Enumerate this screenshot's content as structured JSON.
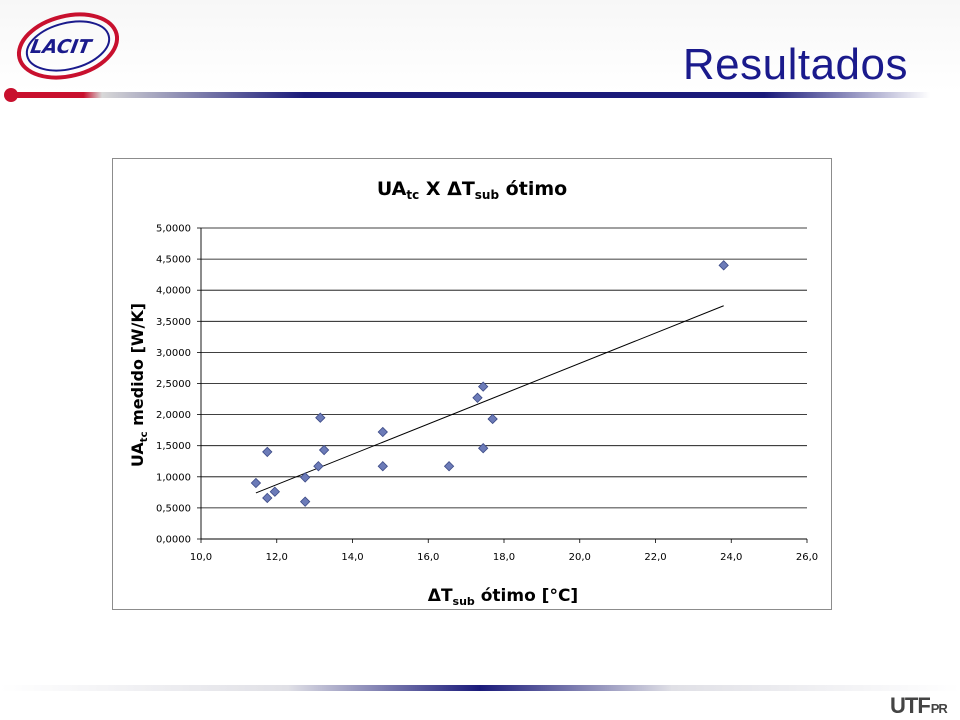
{
  "slide": {
    "title": "Resultados",
    "logo_text": "LACIT",
    "footer_logo_main": "UTF",
    "footer_logo_sub": "PR"
  },
  "colors": {
    "title": "#1a1a8c",
    "accent_red": "#c8102e",
    "rule_dark": "#1a1a7a",
    "marker": "#6c7bb8"
  },
  "chart_data": {
    "type": "scatter",
    "title_main": "UA",
    "title_sub1": "tc",
    "title_mid": " X ΔT",
    "title_sub2": "sub",
    "title_end": " ótimo",
    "xlabel_main": "ΔT",
    "xlabel_sub": "sub",
    "xlabel_end": " ótimo [°C]",
    "ylabel_main": "UA",
    "ylabel_sub": "tc",
    "ylabel_end": " medido [W/K]",
    "xlim": [
      10.0,
      26.0
    ],
    "ylim": [
      0.0,
      5.0
    ],
    "x_ticks": [
      "10,0",
      "12,0",
      "14,0",
      "16,0",
      "18,0",
      "20,0",
      "22,0",
      "24,0",
      "26,0"
    ],
    "y_ticks": [
      "0,0000",
      "0,5000",
      "1,0000",
      "1,5000",
      "2,0000",
      "2,5000",
      "3,0000",
      "3,5000",
      "4,0000",
      "4,5000",
      "5,0000"
    ],
    "grid": "horizontal",
    "legend": "none",
    "points": [
      {
        "x": 11.45,
        "y": 0.9
      },
      {
        "x": 11.75,
        "y": 0.66
      },
      {
        "x": 11.95,
        "y": 0.76
      },
      {
        "x": 11.75,
        "y": 1.4
      },
      {
        "x": 12.75,
        "y": 0.6
      },
      {
        "x": 12.75,
        "y": 0.99
      },
      {
        "x": 13.1,
        "y": 1.17
      },
      {
        "x": 13.15,
        "y": 1.95
      },
      {
        "x": 13.25,
        "y": 1.43
      },
      {
        "x": 14.8,
        "y": 1.72
      },
      {
        "x": 14.8,
        "y": 1.17
      },
      {
        "x": 16.55,
        "y": 1.17
      },
      {
        "x": 17.3,
        "y": 2.27
      },
      {
        "x": 17.45,
        "y": 2.45
      },
      {
        "x": 17.45,
        "y": 1.46
      },
      {
        "x": 17.7,
        "y": 1.93
      },
      {
        "x": 23.8,
        "y": 4.4
      }
    ],
    "trendline": {
      "x": [
        11.45,
        23.8
      ],
      "y": [
        0.74,
        3.75
      ]
    }
  }
}
